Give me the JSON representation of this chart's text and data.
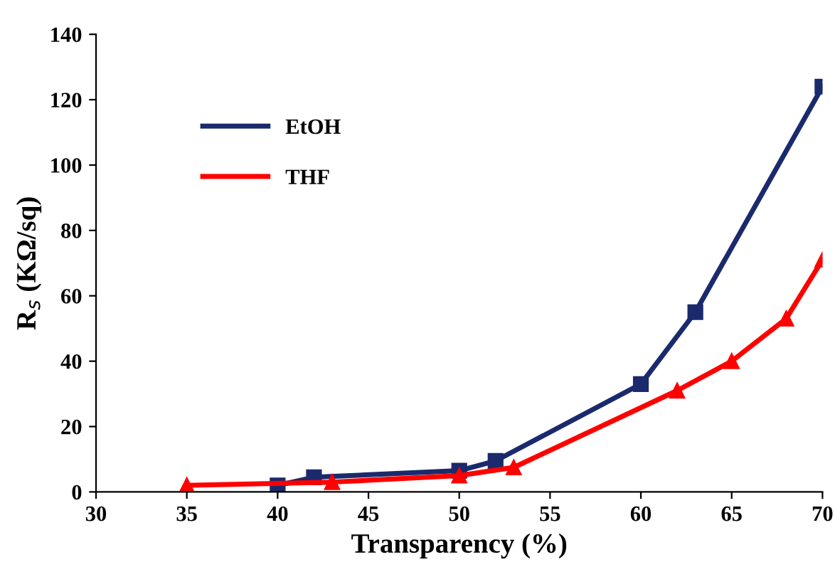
{
  "chart_data": {
    "type": "line",
    "xlabel": "Transparency (%)",
    "ylabel": "R$_{s}$ (KΩ/sq)",
    "xlim": [
      30,
      70
    ],
    "xticks": [
      30,
      35,
      40,
      45,
      50,
      55,
      60,
      65,
      70
    ],
    "ylim": [
      0,
      140
    ],
    "yticks": [
      0,
      20,
      40,
      60,
      80,
      100,
      120,
      140
    ],
    "grid": false,
    "legend": "top left",
    "line_style": "solid",
    "series": [
      {
        "name": "EtOH",
        "color": "#1a2a6c",
        "marker": "square",
        "x": [
          40,
          42,
          50,
          52,
          60,
          63,
          70
        ],
        "values": [
          2,
          4.5,
          6.5,
          9.5,
          33,
          55,
          124
        ]
      },
      {
        "name": "THF",
        "color": "#ff0000",
        "marker": "triangle",
        "x": [
          35,
          43,
          50,
          53,
          62,
          65,
          68,
          70
        ],
        "values": [
          2,
          3,
          5,
          7.5,
          31,
          40,
          53,
          71
        ]
      }
    ]
  }
}
